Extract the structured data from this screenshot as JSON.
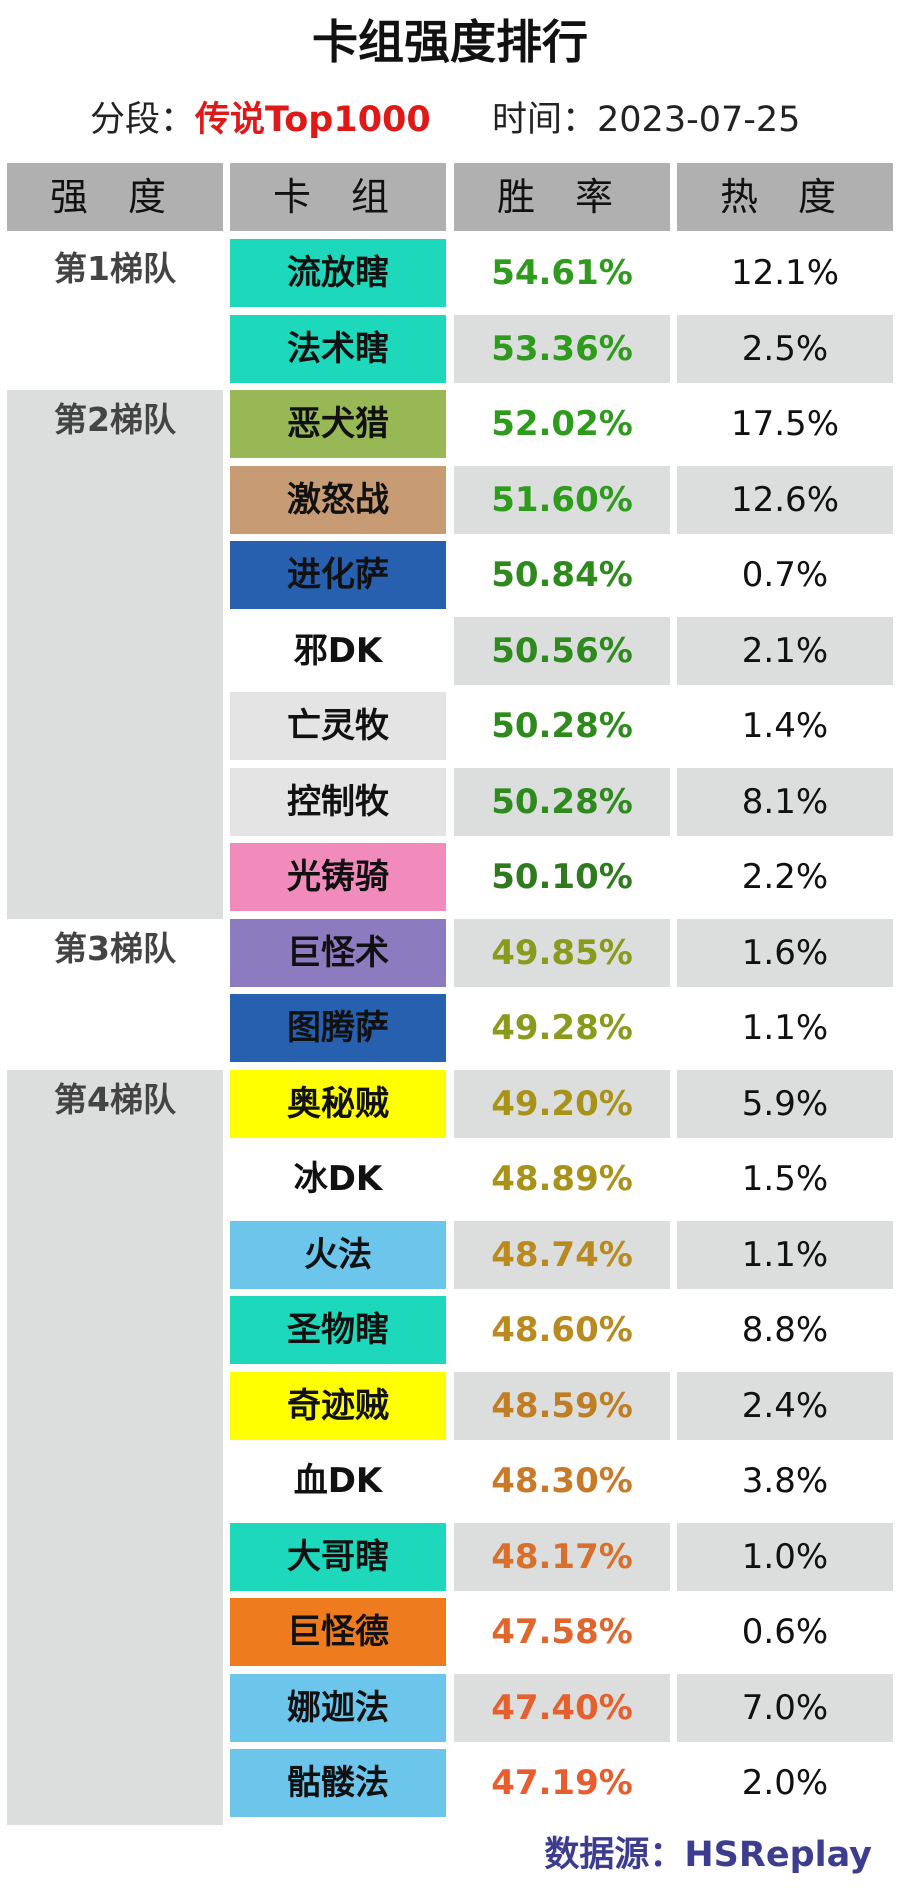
{
  "title": "卡组强度排行",
  "segment_label": "分段：",
  "segment_value": "传说Top1000",
  "time_label": "时间：",
  "time_value": "2023-07-25",
  "headers": [
    "强 度",
    "卡 组",
    "胜 率",
    "热 度"
  ],
  "tiers": [
    {
      "label": "第1梯队",
      "rows": 2
    },
    {
      "label": "第2梯队",
      "rows": 7
    },
    {
      "label": "第3梯队",
      "rows": 2
    },
    {
      "label": "第4梯队",
      "rows": 10
    }
  ],
  "rows": [
    {
      "deck": "流放瞎",
      "winrate": "54.61%",
      "popularity": "12.1%",
      "deck_color": "#1ed8bb",
      "wr_color": "#2e9b1c"
    },
    {
      "deck": "法术瞎",
      "winrate": "53.36%",
      "popularity": "2.5%",
      "deck_color": "#1ed8bb",
      "wr_color": "#2e9b1c"
    },
    {
      "deck": "恶犬猎",
      "winrate": "52.02%",
      "popularity": "17.5%",
      "deck_color": "#98b856",
      "wr_color": "#2e9b1c"
    },
    {
      "deck": "激怒战",
      "winrate": "51.60%",
      "popularity": "12.6%",
      "deck_color": "#c79b74",
      "wr_color": "#2e9b1c"
    },
    {
      "deck": "进化萨",
      "winrate": "50.84%",
      "popularity": "0.7%",
      "deck_color": "#2660ae",
      "wr_color": "#2e8a1c"
    },
    {
      "deck": "邪DK",
      "winrate": "50.56%",
      "popularity": "2.1%",
      "deck_color": "#ffffff",
      "wr_color": "#2e8a1c"
    },
    {
      "deck": "亡灵牧",
      "winrate": "50.28%",
      "popularity": "1.4%",
      "deck_color": "#e4e4e4",
      "wr_color": "#2e8a1c"
    },
    {
      "deck": "控制牧",
      "winrate": "50.28%",
      "popularity": "8.1%",
      "deck_color": "#e4e4e4",
      "wr_color": "#2e8a1c"
    },
    {
      "deck": "光铸骑",
      "winrate": "50.10%",
      "popularity": "2.2%",
      "deck_color": "#f08bbb",
      "wr_color": "#2e7a1c"
    },
    {
      "deck": "巨怪术",
      "winrate": "49.85%",
      "popularity": "1.6%",
      "deck_color": "#8c7bbf",
      "wr_color": "#8a9a1c"
    },
    {
      "deck": "图腾萨",
      "winrate": "49.28%",
      "popularity": "1.1%",
      "deck_color": "#2660ae",
      "wr_color": "#8a9a1c"
    },
    {
      "deck": "奥秘贼",
      "winrate": "49.20%",
      "popularity": "5.9%",
      "deck_color": "#ffff00",
      "wr_color": "#a89218"
    },
    {
      "deck": "冰DK",
      "winrate": "48.89%",
      "popularity": "1.5%",
      "deck_color": "#ffffff",
      "wr_color": "#a89218"
    },
    {
      "deck": "火法",
      "winrate": "48.74%",
      "popularity": "1.1%",
      "deck_color": "#6cc6ec",
      "wr_color": "#b88a20"
    },
    {
      "deck": "圣物瞎",
      "winrate": "48.60%",
      "popularity": "8.8%",
      "deck_color": "#1ed8bb",
      "wr_color": "#b88a20"
    },
    {
      "deck": "奇迹贼",
      "winrate": "48.59%",
      "popularity": "2.4%",
      "deck_color": "#ffff00",
      "wr_color": "#c07e24"
    },
    {
      "deck": "血DK",
      "winrate": "48.30%",
      "popularity": "3.8%",
      "deck_color": "#ffffff",
      "wr_color": "#c87a28"
    },
    {
      "deck": "大哥瞎",
      "winrate": "48.17%",
      "popularity": "1.0%",
      "deck_color": "#1ed8bb",
      "wr_color": "#d8702c"
    },
    {
      "deck": "巨怪德",
      "winrate": "47.58%",
      "popularity": "0.6%",
      "deck_color": "#ef7b1f",
      "wr_color": "#e0662e"
    },
    {
      "deck": "娜迦法",
      "winrate": "47.40%",
      "popularity": "7.0%",
      "deck_color": "#6cc6ec",
      "wr_color": "#e6602e"
    },
    {
      "deck": "骷髅法",
      "winrate": "47.19%",
      "popularity": "2.0%",
      "deck_color": "#6cc6ec",
      "wr_color": "#e85c2e"
    }
  ],
  "source_label": "数据源：",
  "source_value": "HSReplay"
}
